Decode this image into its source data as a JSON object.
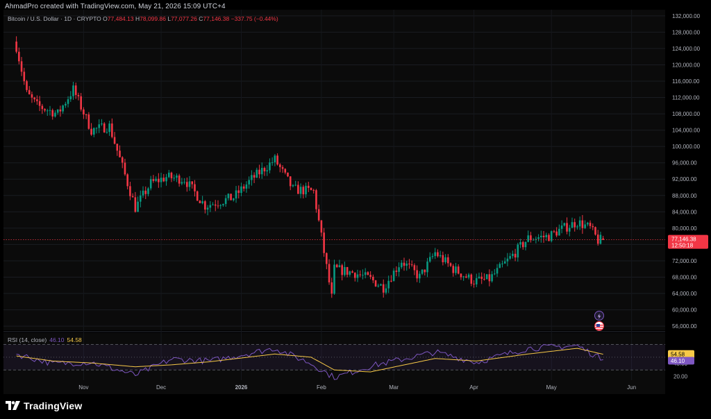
{
  "header": {
    "credit": "AhmadPro created with TradingView.com, May 21, 2026 15:09 UTC+4",
    "symbol": "Bitcoin / U.S. Dollar · 1D · CRYPTO",
    "o_label": "O",
    "o_value": "77,484.13",
    "h_label": "H",
    "h_value": "78,099.86",
    "l_label": "L",
    "l_value": "77,077.26",
    "c_label": "C",
    "c_value": "77,146.38",
    "change": "−337.75 (−0.44%)"
  },
  "price_badge": {
    "price": "77,146.38",
    "countdown": "12:50:18"
  },
  "rsi_legend": {
    "label": "RSI (14, close)",
    "rsi_value": "46.10",
    "ma_value": "54.58"
  },
  "rsi_badges": {
    "ma": "54.58",
    "rsi": "46.10"
  },
  "footer": {
    "brand": "TradingView"
  },
  "colors": {
    "background": "#0b0b0b",
    "up": "#089981",
    "down": "#f23645",
    "rsi_line": "#7e57c2",
    "rsi_ma": "#f7c948",
    "axis_text": "#b2b5be"
  },
  "icons": [
    "tradingview-logo-icon",
    "lightning-icon",
    "us-flag-icon"
  ],
  "chart_data": [
    {
      "type": "candlestick",
      "title": "Bitcoin / U.S. Dollar · 1D · CRYPTO",
      "x_labels": [
        "Nov",
        "Dec",
        "2026",
        "Feb",
        "Mar",
        "Apr",
        "May",
        "Jun"
      ],
      "y_ticks": [
        "132,000.00",
        "128,000.00",
        "124,000.00",
        "120,000.00",
        "116,000.00",
        "112,000.00",
        "108,000.00",
        "104,000.00",
        "100,000.00",
        "96,000.00",
        "92,000.00",
        "88,000.00",
        "84,000.00",
        "80,000.00",
        "76,000.00",
        "72,000.00",
        "68,000.00",
        "64,000.00",
        "60,000.00",
        "56,000.00"
      ],
      "ylim": [
        55000,
        133500
      ],
      "x_anchors": [
        {
          "date": "2025-10-06",
          "price": 124500
        },
        {
          "date": "2025-10-10",
          "price": 113000
        },
        {
          "date": "2025-10-14",
          "price": 110000
        },
        {
          "date": "2025-10-22",
          "price": 108000
        },
        {
          "date": "2025-10-28",
          "price": 114000
        },
        {
          "date": "2025-11-04",
          "price": 104000
        },
        {
          "date": "2025-11-11",
          "price": 105000
        },
        {
          "date": "2025-11-21",
          "price": 85000
        },
        {
          "date": "2025-11-27",
          "price": 91000
        },
        {
          "date": "2025-12-03",
          "price": 92500
        },
        {
          "date": "2025-12-10",
          "price": 92000
        },
        {
          "date": "2025-12-18",
          "price": 85500
        },
        {
          "date": "2025-12-29",
          "price": 87500
        },
        {
          "date": "2026-01-05",
          "price": 92000
        },
        {
          "date": "2026-01-14",
          "price": 96800
        },
        {
          "date": "2026-01-21",
          "price": 89500
        },
        {
          "date": "2026-01-29",
          "price": 89000
        },
        {
          "date": "2026-02-05",
          "price": 63000
        },
        {
          "date": "2026-02-06",
          "price": 70000
        },
        {
          "date": "2026-02-14",
          "price": 69000
        },
        {
          "date": "2026-02-20",
          "price": 67500
        },
        {
          "date": "2026-02-25",
          "price": 65500
        },
        {
          "date": "2026-03-04",
          "price": 72000
        },
        {
          "date": "2026-03-11",
          "price": 68000
        },
        {
          "date": "2026-03-17",
          "price": 74000
        },
        {
          "date": "2026-03-24",
          "price": 70000
        },
        {
          "date": "2026-04-01",
          "price": 67000
        },
        {
          "date": "2026-04-07",
          "price": 67500
        },
        {
          "date": "2026-04-14",
          "price": 72000
        },
        {
          "date": "2026-04-22",
          "price": 77500
        },
        {
          "date": "2026-04-30",
          "price": 78000
        },
        {
          "date": "2026-05-04",
          "price": 79500
        },
        {
          "date": "2026-05-11",
          "price": 81500
        },
        {
          "date": "2026-05-16",
          "price": 80000
        },
        {
          "date": "2026-05-19",
          "price": 77000
        },
        {
          "date": "2026-05-21",
          "price": 77146.38
        }
      ],
      "last_close": 77146.38
    },
    {
      "type": "line",
      "title": "RSI (14, close)",
      "y_ticks": [
        "54.58",
        "46.10",
        "40.00",
        "20.00"
      ],
      "ylim": [
        14,
        88
      ],
      "band": [
        30,
        70
      ],
      "series": [
        {
          "name": "RSI",
          "last": 46.1
        },
        {
          "name": "RSI-based MA",
          "last": 54.58
        }
      ],
      "anchors": [
        {
          "date": "2025-10-06",
          "rsi": 55,
          "ma": 52
        },
        {
          "date": "2025-10-20",
          "rsi": 40,
          "ma": 44
        },
        {
          "date": "2025-11-04",
          "rsi": 42,
          "ma": 41
        },
        {
          "date": "2025-11-21",
          "rsi": 22,
          "ma": 35
        },
        {
          "date": "2025-12-05",
          "rsi": 47,
          "ma": 38
        },
        {
          "date": "2025-12-20",
          "rsi": 44,
          "ma": 43
        },
        {
          "date": "2026-01-14",
          "rsi": 64,
          "ma": 55
        },
        {
          "date": "2026-01-28",
          "rsi": 40,
          "ma": 50
        },
        {
          "date": "2026-02-06",
          "rsi": 18,
          "ma": 30
        },
        {
          "date": "2026-02-20",
          "rsi": 36,
          "ma": 27
        },
        {
          "date": "2026-03-17",
          "rsi": 58,
          "ma": 48
        },
        {
          "date": "2026-04-02",
          "rsi": 42,
          "ma": 44
        },
        {
          "date": "2026-04-22",
          "rsi": 64,
          "ma": 55
        },
        {
          "date": "2026-05-11",
          "rsi": 68,
          "ma": 64
        },
        {
          "date": "2026-05-21",
          "rsi": 46.1,
          "ma": 54.58
        }
      ]
    }
  ]
}
